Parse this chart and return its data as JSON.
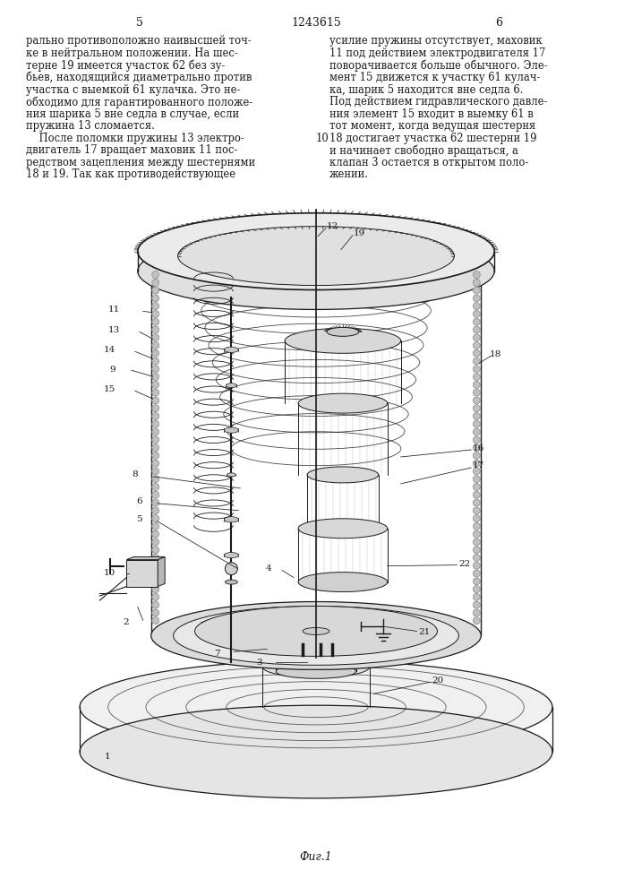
{
  "page_number_left": "5",
  "page_number_right": "6",
  "patent_number": "1243615",
  "left_column_text": [
    "рально противоположно наивысшей точ-",
    "ке в нейтральном положении. На шес-",
    "терне 19 имеется участок 62 без зу-",
    "бьев, находящийся диаметрально против",
    "участка с выемкой 61 кулачка. Это не-",
    "обходимо для гарантированного положе-",
    "ния шарика 5 вне седла в случае, если",
    "пружина 13 сломается.",
    "    После поломки пружины 13 электро-",
    "двигатель 17 вращает маховик 11 пос-",
    "редством зацепления между шестернями",
    "18 и 19. Так как противодействующее"
  ],
  "right_column_text": [
    "усилие пружины отсутствует, маховик",
    "11 под действием электродвигателя 17",
    "поворачивается больше обычного. Эле-",
    "мент 15 движется к участку 61 кулач-",
    "ка, шарик 5 находится вне седла 6.",
    "Под действием гидравлического давле-",
    "ния элемент 15 входит в выемку 61 в",
    "тот момент, когда ведущая шестерня",
    "18 достигает участка 62 шестерни 19",
    "и начинает свободно вращаться, а",
    "клапан 3 остается в открытом поло-",
    "жении."
  ],
  "line_number_10_col": 8,
  "fig_caption": "Фиг.1",
  "bg_color": "#ffffff",
  "text_color": "#1a1a1a",
  "draw_color": "#1a1a1a",
  "font_size_text": 8.3,
  "font_size_header": 9.0,
  "font_size_caption": 9.0,
  "font_size_label": 7.5
}
